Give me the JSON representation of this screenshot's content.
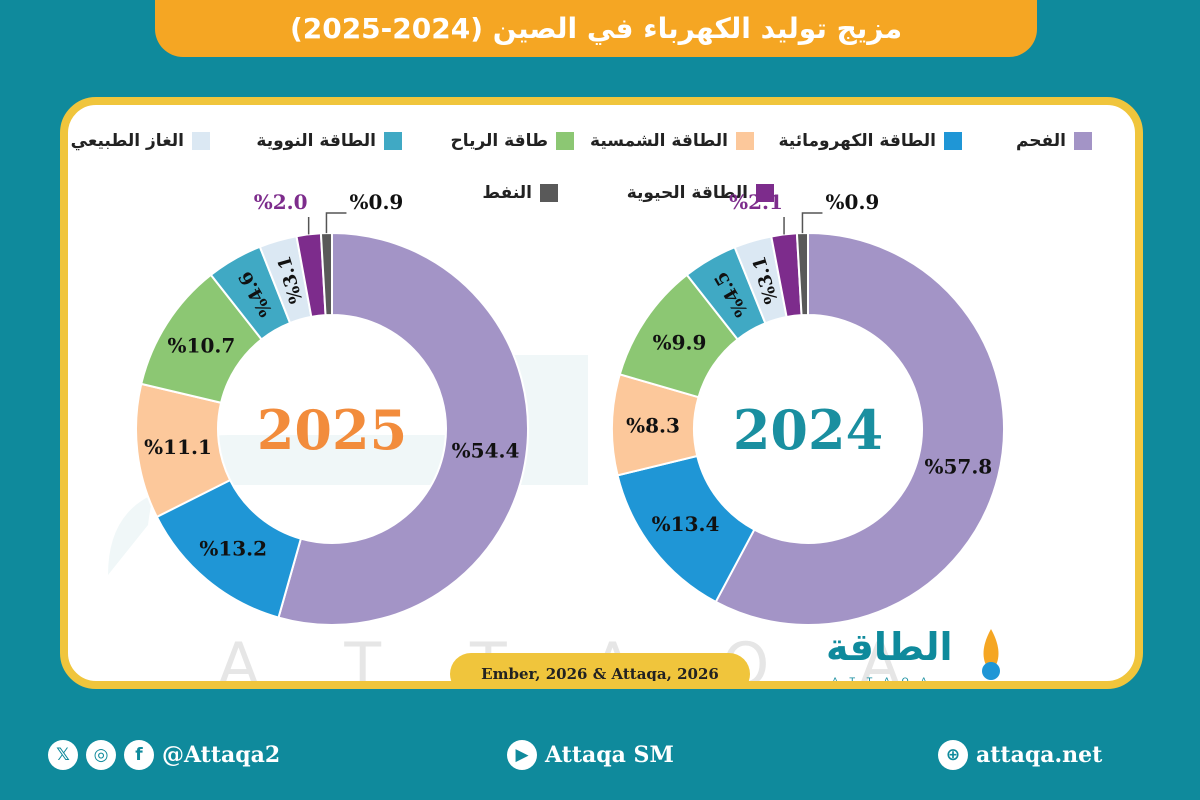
{
  "title": "مزيج توليد الكهرباء في الصين (2024-2025)",
  "legend": [
    {
      "label": "الفحم",
      "color": "#a394c6"
    },
    {
      "label": "الطاقة الكهرومائية",
      "color": "#1f96d6"
    },
    {
      "label": "الطاقة الشمسية",
      "color": "#fcc89b"
    },
    {
      "label": "طاقة الرياح",
      "color": "#8cc773"
    },
    {
      "label": "الطاقة النووية",
      "color": "#40a9c4"
    },
    {
      "label": "الغاز الطبيعي",
      "color": "#dbe8f3"
    },
    {
      "label": "الطاقة الحيوية",
      "color": "#7d2c8c"
    },
    {
      "label": "النفط",
      "color": "#595959"
    }
  ],
  "chart_data": [
    {
      "type": "pie",
      "title": "2024",
      "center_label": "2024",
      "center_color": "#1a8fa0",
      "categories": [
        "الفحم",
        "الطاقة الكهرومائية",
        "الطاقة الشمسية",
        "طاقة الرياح",
        "الطاقة النووية",
        "الغاز الطبيعي",
        "الطاقة الحيوية",
        "النفط"
      ],
      "values": [
        57.8,
        13.4,
        8.3,
        9.9,
        4.5,
        3.1,
        2.1,
        0.9
      ],
      "labels": [
        "%57.8",
        "%13.4",
        "%8.3",
        "%9.9",
        "%4.5",
        "%3.1",
        "%2.1",
        "%0.9"
      ]
    },
    {
      "type": "pie",
      "title": "2025",
      "center_label": "2025",
      "center_color": "#f28c3c",
      "categories": [
        "الفحم",
        "الطاقة الكهرومائية",
        "الطاقة الشمسية",
        "طاقة الرياح",
        "الطاقة النووية",
        "الغاز الطبيعي",
        "الطاقة الحيوية",
        "النفط"
      ],
      "values": [
        54.4,
        13.2,
        11.1,
        10.7,
        4.6,
        3.1,
        2.0,
        0.9
      ],
      "labels": [
        "%54.4",
        "%13.2",
        "%11.1",
        "%10.7",
        "%4.6",
        "%3.1",
        "%2.0",
        "%0.9"
      ]
    }
  ],
  "source": "Ember, 2026 & Attaqa, 2026",
  "logo": {
    "text": "الطاقة",
    "sub": "ATTAQA"
  },
  "footer": {
    "social_handle": "@Attaqa2",
    "youtube": "Attaqa SM",
    "website": "attaqa.net"
  }
}
